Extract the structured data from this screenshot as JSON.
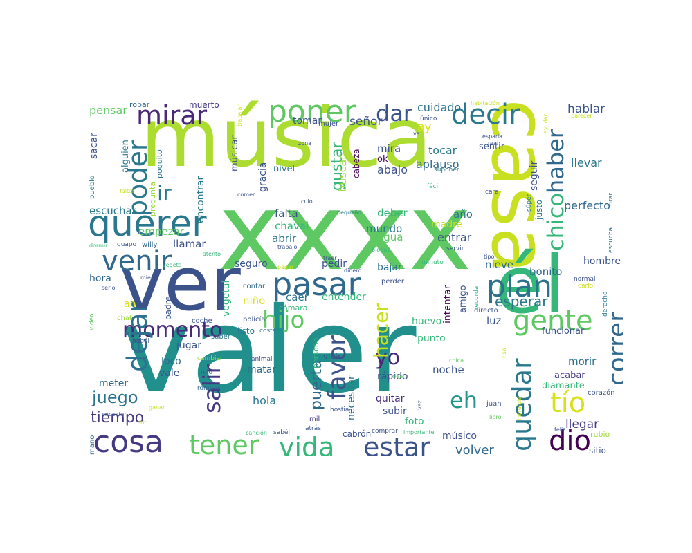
{
  "cloud": {
    "words": [
      {
        "t": "valer",
        "c": "#21908d"
      },
      {
        "t": "xxxx",
        "c": "#5ec962"
      },
      {
        "t": "música",
        "c": "#addc30"
      },
      {
        "t": "ver",
        "c": "#3b528b"
      },
      {
        "t": "casa",
        "c": "#c8e020"
      },
      {
        "t": "él",
        "c": "#35b779"
      },
      {
        "t": "poner",
        "c": "#5ec962"
      },
      {
        "t": "querer",
        "c": "#2a788e"
      },
      {
        "t": "pasar",
        "c": "#31688e"
      },
      {
        "t": "decir",
        "c": "#2a788e"
      },
      {
        "t": "mirar",
        "c": "#482878"
      },
      {
        "t": "venir",
        "c": "#31688e"
      },
      {
        "t": "plan",
        "c": "#2c728e"
      },
      {
        "t": "cosa",
        "c": "#443983"
      },
      {
        "t": "estar",
        "c": "#3b528b"
      },
      {
        "t": "vida",
        "c": "#35b779"
      },
      {
        "t": "tener",
        "c": "#5ec962"
      },
      {
        "t": "gente",
        "c": "#5ec962"
      },
      {
        "t": "hijo",
        "c": "#5ec962"
      },
      {
        "t": "momento",
        "c": "#482878"
      },
      {
        "t": "dejar",
        "c": "#2c728e"
      },
      {
        "t": "poder",
        "c": "#2a788e"
      },
      {
        "t": "dar",
        "c": "#3b528b"
      },
      {
        "t": "tío",
        "c": "#d8e219"
      },
      {
        "t": "dio",
        "c": "#440154"
      },
      {
        "t": "correr",
        "c": "#31688e"
      },
      {
        "t": "quedar",
        "c": "#2a788e"
      },
      {
        "t": "favor",
        "c": "#3b528b"
      },
      {
        "t": "eh",
        "c": "#1f988b"
      },
      {
        "t": "yo",
        "c": "#482878"
      },
      {
        "t": "salir",
        "c": "#443983"
      },
      {
        "t": "hacer",
        "c": "#c8e020"
      },
      {
        "t": "chico",
        "c": "#35b779"
      },
      {
        "t": "haber",
        "c": "#31688e"
      },
      {
        "t": "ir",
        "c": "#2a788e"
      },
      {
        "t": "juego",
        "c": "#2c728e"
      },
      {
        "t": "tiempo",
        "c": "#443983"
      },
      {
        "t": "esperar",
        "c": "#2a788e"
      },
      {
        "t": "puerta",
        "c": "#31688e"
      },
      {
        "t": "gustar",
        "c": "#35b779"
      },
      {
        "t": "señor",
        "c": "#3b528b"
      },
      {
        "t": "cuidado",
        "c": "#2c728e"
      },
      {
        "t": "hablar",
        "c": "#3b528b"
      },
      {
        "t": "pensar",
        "c": "#5ec962"
      },
      {
        "t": "volver",
        "c": "#31688e"
      },
      {
        "t": "llegar",
        "c": "#443983"
      },
      {
        "t": "abajo",
        "c": "#3b528b"
      },
      {
        "t": "aplauso",
        "c": "#31688e"
      },
      {
        "t": "tocar",
        "c": "#2a788e"
      },
      {
        "t": "mira",
        "c": "#3b528b"
      },
      {
        "t": "ay",
        "c": "#d8e219"
      },
      {
        "t": "buscar",
        "c": "#a0da39"
      },
      {
        "t": "tomar",
        "c": "#3b528b"
      },
      {
        "t": "sentir",
        "c": "#3b528b"
      },
      {
        "t": "seguir",
        "c": "#3b528b"
      },
      {
        "t": "llevar",
        "c": "#2a788e"
      },
      {
        "t": "perfecto",
        "c": "#31688e"
      },
      {
        "t": "hombre",
        "c": "#3b528b"
      },
      {
        "t": "bonito",
        "c": "#31688e"
      },
      {
        "t": "nieve",
        "c": "#31688e"
      },
      {
        "t": "entrar",
        "c": "#3b528b"
      },
      {
        "t": "madre",
        "c": "#c8e020"
      },
      {
        "t": "año",
        "c": "#2c728e"
      },
      {
        "t": "deber",
        "c": "#35b779"
      },
      {
        "t": "mundo",
        "c": "#2a788e"
      },
      {
        "t": "agua",
        "c": "#5ec962"
      },
      {
        "t": "abrir",
        "c": "#2a788e"
      },
      {
        "t": "falta",
        "c": "#3b528b"
      },
      {
        "t": "chaval",
        "c": "#35b779"
      },
      {
        "t": "empezar",
        "c": "#5ec962"
      },
      {
        "t": "escuchar",
        "c": "#2a788e"
      },
      {
        "t": "llamar",
        "c": "#3b528b"
      },
      {
        "t": "hora",
        "c": "#31688e"
      },
      {
        "t": "meter",
        "c": "#31688e"
      },
      {
        "t": "jugar",
        "c": "#3b528b"
      },
      {
        "t": "loco",
        "c": "#31688e"
      },
      {
        "t": "vale",
        "c": "#3b528b"
      },
      {
        "t": "hola",
        "c": "#2a788e"
      },
      {
        "t": "matar",
        "c": "#31688e"
      },
      {
        "t": "niño",
        "c": "#d8e219"
      },
      {
        "t": "caer",
        "c": "#2c728e"
      },
      {
        "t": "entender",
        "c": "#35b779"
      },
      {
        "t": "seguro",
        "c": "#3b528b"
      },
      {
        "t": "pedir",
        "c": "#3b528b"
      },
      {
        "t": "bajar",
        "c": "#2c728e"
      },
      {
        "t": "punto",
        "c": "#35b779"
      },
      {
        "t": "huevo",
        "c": "#35b779"
      },
      {
        "t": "luz",
        "c": "#3b528b"
      },
      {
        "t": "morir",
        "c": "#2c728e"
      },
      {
        "t": "acabar",
        "c": "#443983"
      },
      {
        "t": "diamante",
        "c": "#35b779"
      },
      {
        "t": "funcionar",
        "c": "#3b528b"
      },
      {
        "t": "noche",
        "c": "#3b528b"
      },
      {
        "t": "rápido",
        "c": "#3b528b"
      },
      {
        "t": "quitar",
        "c": "#482878"
      },
      {
        "t": "subir",
        "c": "#3b528b"
      },
      {
        "t": "foto",
        "c": "#35b779"
      },
      {
        "t": "músico",
        "c": "#3b528b"
      },
      {
        "t": "necesitar",
        "c": "#2c728e"
      },
      {
        "t": "intentar",
        "c": "#440154"
      },
      {
        "t": "amigo",
        "c": "#3b528b"
      },
      {
        "t": "vegetal",
        "c": "#35b779"
      },
      {
        "t": "encontrar",
        "c": "#2a788e"
      },
      {
        "t": "alguien",
        "c": "#2a788e"
      },
      {
        "t": "sacar",
        "c": "#3b528b"
      },
      {
        "t": "gracia",
        "c": "#3b528b"
      },
      {
        "t": "músicar",
        "c": "#3b528b"
      },
      {
        "t": "nivel",
        "c": "#2a788e"
      },
      {
        "t": "cabeza",
        "c": "#440154"
      },
      {
        "t": "mujer",
        "c": "#3b528b"
      },
      {
        "t": "muerto",
        "c": "#443983"
      },
      {
        "t": "robar",
        "c": "#31688e"
      },
      {
        "t": "poquito",
        "c": "#2a788e"
      },
      {
        "t": "pregunta",
        "c": "#a0da39"
      },
      {
        "t": "pueblo",
        "c": "#2a788e"
      },
      {
        "t": "cámara",
        "c": "#35b779"
      },
      {
        "t": "padre",
        "c": "#3b528b"
      },
      {
        "t": "ah",
        "c": "#d8e219"
      },
      {
        "t": "ok",
        "c": "#440154"
      },
      {
        "t": "listo",
        "c": "#2a788e"
      },
      {
        "t": "persona",
        "c": "#35b779"
      },
      {
        "t": "vivir",
        "c": "#3b528b"
      },
      {
        "t": "justo",
        "c": "#2c728e"
      },
      {
        "t": "rubio",
        "c": "#a0da39"
      },
      {
        "t": "sitio",
        "c": "#3b528b"
      },
      {
        "t": "mano",
        "c": "#31688e"
      },
      {
        "t": "coche",
        "c": "#3b528b"
      },
      {
        "t": "contar",
        "c": "#31688e"
      },
      {
        "t": "video",
        "c": "#5ec962"
      },
      {
        "t": "chat",
        "c": "#a0da39"
      },
      {
        "t": "saber",
        "c": "#2a788e"
      },
      {
        "t": "policía",
        "c": "#3b528b"
      },
      {
        "t": "costar",
        "c": "#2a788e"
      },
      {
        "t": "habéi",
        "c": "#3b528b"
      },
      {
        "t": "animal",
        "c": "#3b528b"
      },
      {
        "t": "cambiar",
        "c": "#a0da39"
      },
      {
        "t": "rojo",
        "c": "#3b528b"
      },
      {
        "t": "romper",
        "c": "#31688e"
      },
      {
        "t": "mil",
        "c": "#443983"
      },
      {
        "t": "hostia",
        "c": "#3b528b"
      },
      {
        "t": "atrás",
        "c": "#3b528b"
      },
      {
        "t": "sabéi",
        "c": "#3b528b"
      },
      {
        "t": "canción",
        "c": "#35b779"
      },
      {
        "t": "cabrón",
        "c": "#3b528b"
      },
      {
        "t": "comprar",
        "c": "#3b528b"
      },
      {
        "t": "importante",
        "c": "#35b779"
      },
      {
        "t": "idea",
        "c": "#5ec962"
      },
      {
        "t": "chica",
        "c": "#5ec962"
      },
      {
        "t": "juan",
        "c": "#3b528b"
      },
      {
        "t": "libro",
        "c": "#5ec962"
      },
      {
        "t": "feliz",
        "c": "#3b528b"
      },
      {
        "t": "corazón",
        "c": "#3b528b"
      },
      {
        "t": "increíble",
        "c": "#c8e020"
      },
      {
        "t": "risa",
        "c": "#c8e020"
      },
      {
        "t": "vez",
        "c": "#3b528b"
      },
      {
        "t": "directo",
        "c": "#3b528b"
      },
      {
        "t": "recordar",
        "c": "#35b779"
      },
      {
        "t": "perder",
        "c": "#3b528b"
      },
      {
        "t": "minuto",
        "c": "#35b779"
      },
      {
        "t": "normal",
        "c": "#3b528b"
      },
      {
        "t": "carlo",
        "c": "#c8e020"
      },
      {
        "t": "derecho",
        "c": "#2a788e"
      },
      {
        "t": "escucha",
        "c": "#2a788e"
      },
      {
        "t": "tirar",
        "c": "#2a788e"
      },
      {
        "t": "súper",
        "c": "#2a788e"
      },
      {
        "t": "cara",
        "c": "#3b528b"
      },
      {
        "t": "fácil",
        "c": "#35b779"
      },
      {
        "t": "suponer",
        "c": "#2a788e"
      },
      {
        "t": "servir",
        "c": "#3b528b"
      },
      {
        "t": "tipo",
        "c": "#3b528b"
      },
      {
        "t": "culo",
        "c": "#3b528b"
      },
      {
        "t": "pequeño",
        "c": "#2a788e"
      },
      {
        "t": "bloque",
        "c": "#35b779"
      },
      {
        "t": "trabajo",
        "c": "#3b528b"
      },
      {
        "t": "atento",
        "c": "#35b779"
      },
      {
        "t": "comer",
        "c": "#3b528b"
      },
      {
        "t": "traer",
        "c": "#3b528b"
      },
      {
        "t": "dinero",
        "c": "#3b528b"
      },
      {
        "t": "pagar",
        "c": "#c8e020"
      },
      {
        "t": "guapo",
        "c": "#3b528b"
      },
      {
        "t": "willy",
        "c": "#31688e"
      },
      {
        "t": "dormir",
        "c": "#35b779"
      },
      {
        "t": "faltar",
        "c": "#c8e020"
      },
      {
        "t": "vegeta",
        "c": "#35b779"
      },
      {
        "t": "serio",
        "c": "#3b528b"
      },
      {
        "t": "miedo",
        "c": "#3b528b"
      },
      {
        "t": "encantar",
        "c": "#3b528b"
      },
      {
        "t": "ganar",
        "c": "#c8e020"
      },
      {
        "t": "titi",
        "c": "#c8e020"
      },
      {
        "t": "zona",
        "c": "#3b528b"
      },
      {
        "t": "espada",
        "c": "#3b528b"
      },
      {
        "t": "real",
        "c": "#3b528b"
      },
      {
        "t": "trabajar",
        "c": "#c8e020"
      },
      {
        "t": "único",
        "c": "#3b528b"
      },
      {
        "t": "habitación",
        "c": "#c8e020"
      },
      {
        "t": "ayudar",
        "c": "#c8e020"
      },
      {
        "t": "parecer",
        "c": "#c8e020"
      },
      {
        "t": "va",
        "c": "#3b528b"
      }
    ]
  }
}
